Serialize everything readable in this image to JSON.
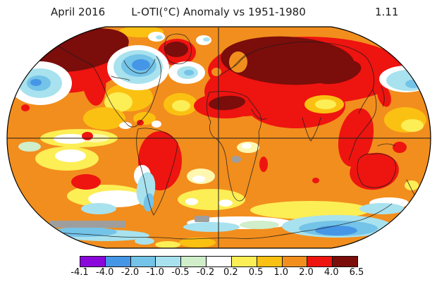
{
  "header": {
    "date_label": "April 2016",
    "title": "L-OTI(°C) Anomaly vs 1951-1980",
    "value": "1.11"
  },
  "colors": {
    "purple": "#8a08dc",
    "blue": "#4596e6",
    "light_blue": "#74c3e8",
    "pale_cyan": "#a8e2ee",
    "pale_green": "#cfeec9",
    "white": "#ffffff",
    "yellow": "#fcee55",
    "pale_yellow": "#fdf7b0",
    "amber": "#fbc112",
    "orange": "#f28e1d",
    "red": "#ee1410",
    "dark_red": "#7b0d0b",
    "gray": "#9e9e9e",
    "line": "#1c1c1c"
  },
  "map": {
    "projection": "Robinson",
    "graticule": [
      "equator",
      "prime-meridian"
    ],
    "no_data_regions": [
      "Antarctic coastal strip (south of Pacific/Atlantic)",
      "Central East Africa lakes"
    ]
  },
  "chart_data": {
    "type": "heatmap",
    "title": "L-OTI(°C) Anomaly vs 1951-1980",
    "period": "April 2016",
    "global_mean_anomaly_c": 1.11,
    "units": "°C anomaly vs 1951-1980 baseline",
    "colorbar": {
      "boundary_labels": [
        "-4.1",
        "-4.0",
        "-2.0",
        "-1.0",
        "-0.5",
        "-0.2",
        "0.2",
        "0.5",
        "1.0",
        "2.0",
        "4.0",
        "6.5"
      ],
      "segment_colors": [
        "#8a08dc",
        "#4596e6",
        "#74c3e8",
        "#a8e2ee",
        "#cfeec9",
        "#ffffff",
        "#fcee55",
        "#fbc112",
        "#f28e1d",
        "#ee1410",
        "#7b0d0b"
      ]
    },
    "hotspots": [
      {
        "region": "Alaska / NE Siberia",
        "anomaly_range_c": "4.0 to 6.5"
      },
      {
        "region": "Central Siberia / Russia",
        "anomaly_range_c": "4.0 to 6.5"
      },
      {
        "region": "Greenland interior",
        "anomaly_range_c": "4.0 to 6.5"
      },
      {
        "region": "Sahara (North Africa)",
        "anomaly_range_c": "4.0 to 6.5"
      },
      {
        "region": "Eurasia / Middle East / SE Asia",
        "anomaly_range_c": "2.0 to 4.0"
      },
      {
        "region": "Brazil / northern South America",
        "anomaly_range_c": "2.0 to 4.0"
      },
      {
        "region": "Australia",
        "anomaly_range_c": "2.0 to 4.0"
      }
    ],
    "coldspots": [
      {
        "region": "Hudson Bay / NE Canada",
        "anomaly_range_c": "-2.0 to -0.5"
      },
      {
        "region": "Central North Pacific",
        "anomaly_range_c": "-2.0 to -0.5"
      },
      {
        "region": "North Atlantic south of Greenland",
        "anomaly_range_c": "-1.0 to -0.2"
      },
      {
        "region": "Northeast Pacific",
        "anomaly_range_c": "-1.0 to -0.2"
      },
      {
        "region": "Southern Ocean near Antarctica",
        "anomaly_range_c": "-2.0 to -0.5"
      },
      {
        "region": "Patagonia coast",
        "anomaly_range_c": "-1.0 to -0.2"
      }
    ]
  }
}
